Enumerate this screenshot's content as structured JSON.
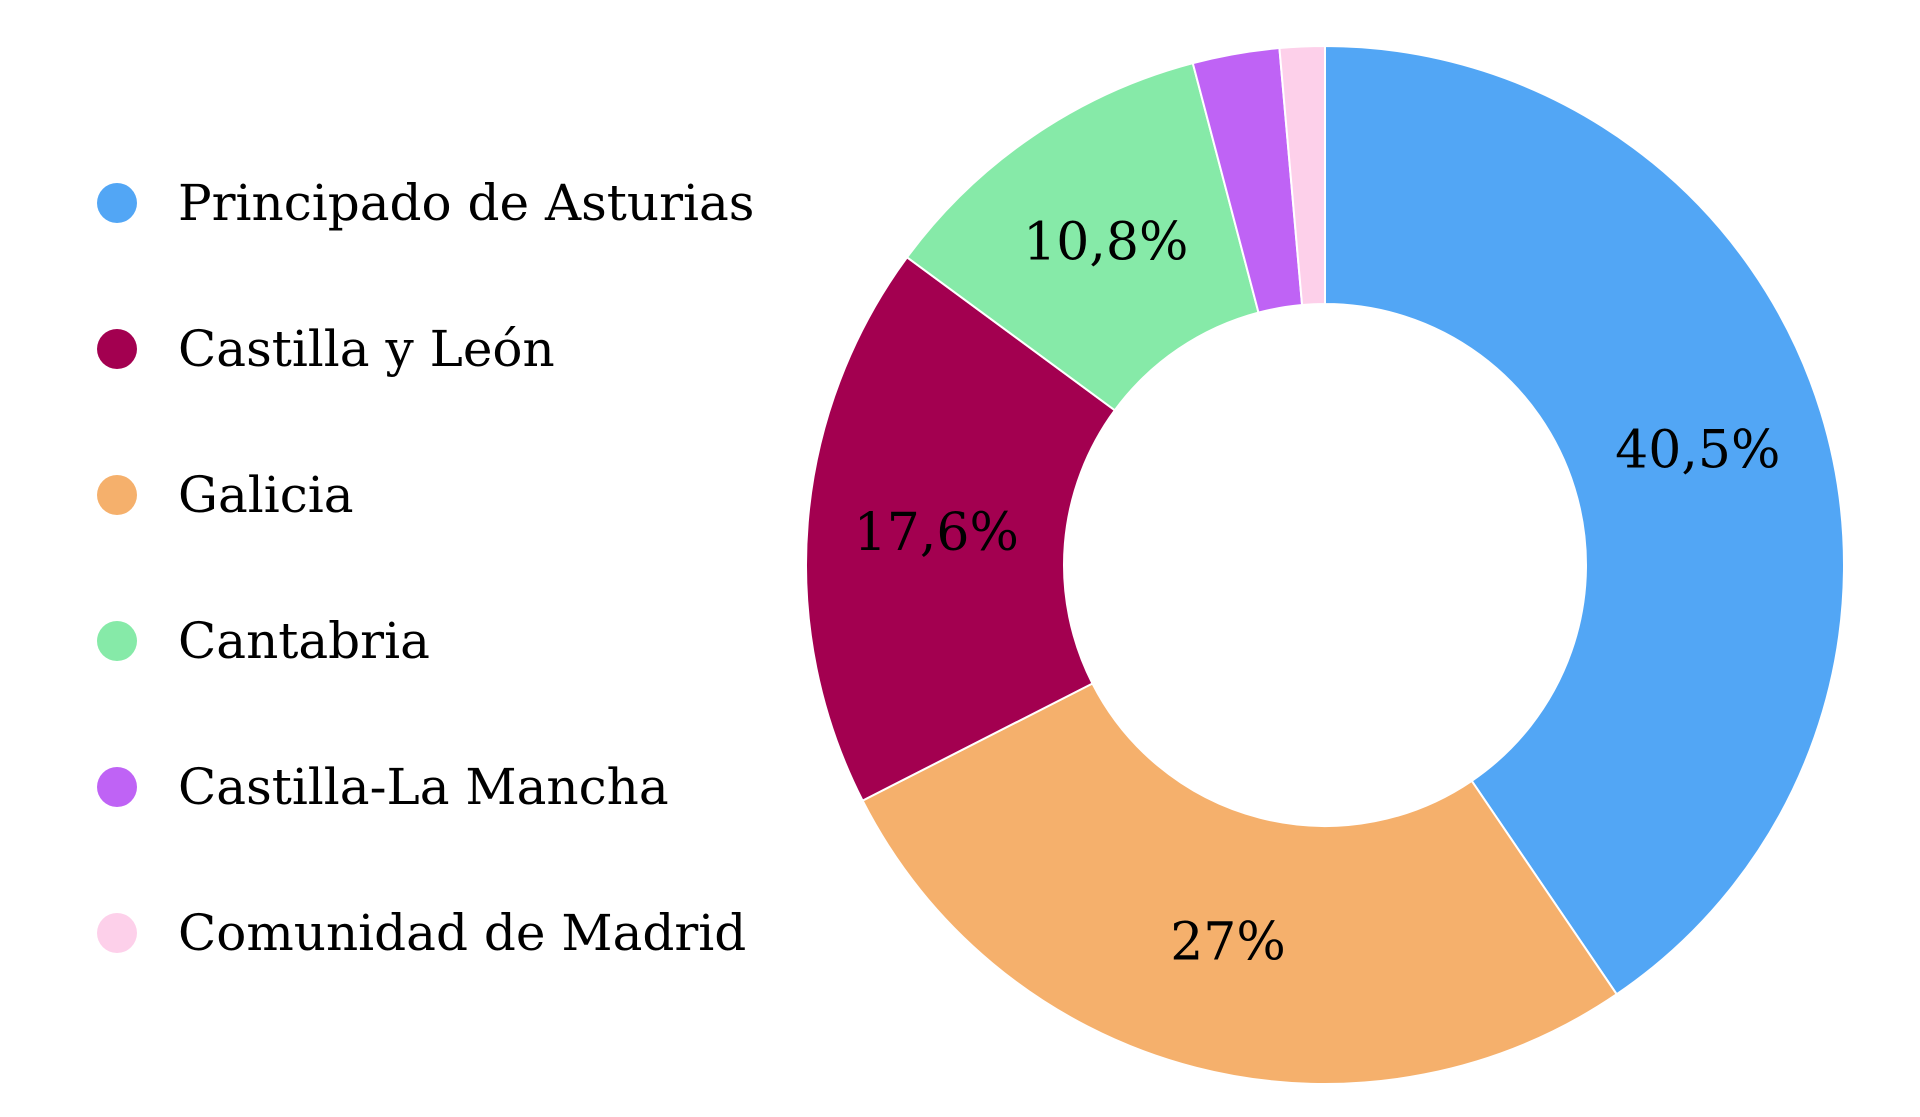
{
  "chart_data": {
    "type": "pie",
    "variant": "donut",
    "title": "",
    "legend_position": "left",
    "categories": [
      "Principado de Asturias",
      "Castilla y León",
      "Galicia",
      "Cantabria",
      "Castilla-La Mancha",
      "Comunidad de Madrid"
    ],
    "values": [
      40.5,
      27,
      17.6,
      10.8,
      2.7,
      1.4
    ],
    "colors": [
      "#52a6f5",
      "#f5b06c",
      "#a30050",
      "#86eaa8",
      "#bf63f5",
      "#fdd0ea"
    ],
    "legend_colors": [
      "#52a6f5",
      "#a30050",
      "#f5b06c",
      "#86eaa8",
      "#bf63f5",
      "#fdd0ea"
    ],
    "data_labels": [
      "40,5%",
      "27%",
      "17,6%",
      "10,8%",
      "",
      ""
    ]
  }
}
